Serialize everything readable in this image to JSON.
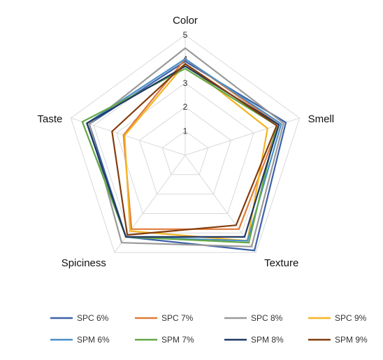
{
  "chart_data": {
    "type": "radar",
    "axes": [
      "Color",
      "Smell",
      "Texture",
      "Spiciness",
      "Taste"
    ],
    "rlim": [
      0,
      5
    ],
    "ticks": [
      1,
      2,
      3,
      4,
      5
    ],
    "grid": true,
    "legend_position": "bottom",
    "series": [
      {
        "name": "SPC 6%",
        "color": "#3d62a8",
        "values": [
          3.9,
          4.4,
          4.9,
          4.2,
          4.2
        ]
      },
      {
        "name": "SPC 7%",
        "color": "#e07b39",
        "values": [
          4.0,
          4.1,
          3.8,
          3.8,
          2.7
        ]
      },
      {
        "name": "SPC 8%",
        "color": "#9a9a9a",
        "values": [
          4.45,
          4.3,
          4.7,
          4.5,
          4.2
        ]
      },
      {
        "name": "SPC 9%",
        "color": "#f2b523",
        "values": [
          3.8,
          3.6,
          4.4,
          3.9,
          2.65
        ]
      },
      {
        "name": "SPM 6%",
        "color": "#4a90c9",
        "values": [
          4.0,
          4.2,
          4.4,
          4.2,
          4.3
        ]
      },
      {
        "name": "SPM 7%",
        "color": "#62a845",
        "values": [
          3.6,
          4.0,
          4.5,
          4.2,
          4.5
        ]
      },
      {
        "name": "SPM 8%",
        "color": "#1f3864",
        "values": [
          3.7,
          4.1,
          4.2,
          4.2,
          4.3
        ]
      },
      {
        "name": "SPM 9%",
        "color": "#843c0c",
        "values": [
          3.8,
          4.0,
          3.6,
          4.1,
          3.2
        ]
      }
    ]
  }
}
